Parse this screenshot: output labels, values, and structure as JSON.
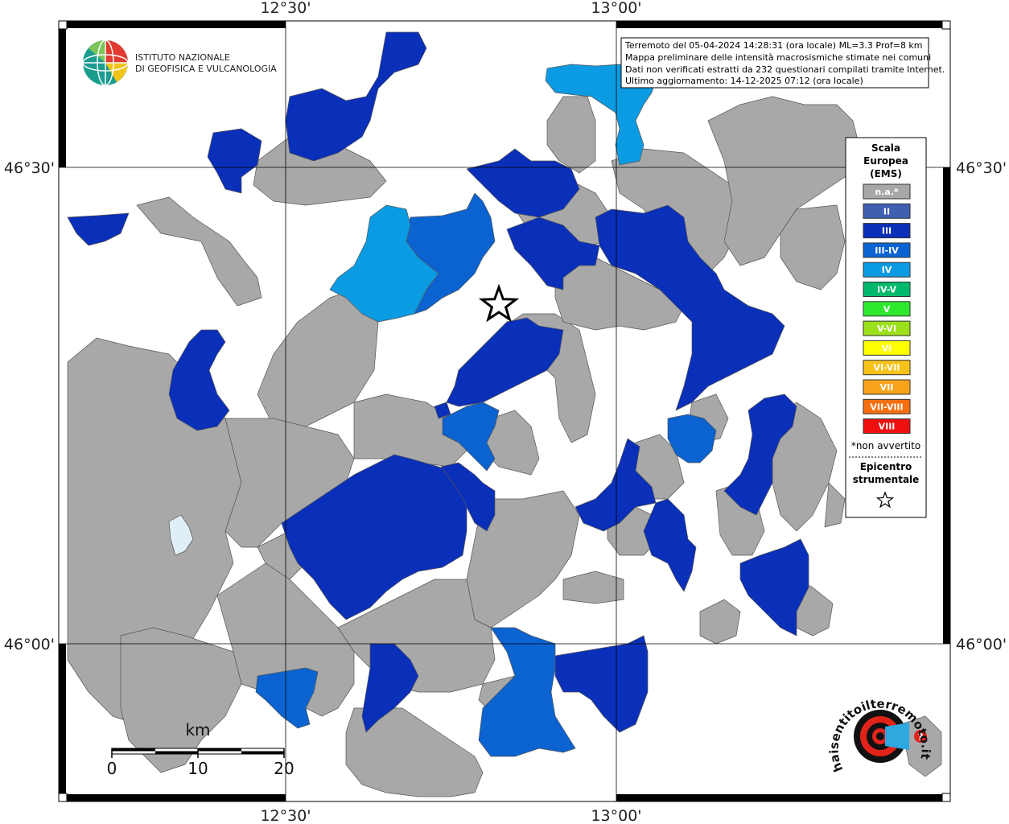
{
  "map": {
    "lon_labels": [
      "12°30'",
      "13°00'"
    ],
    "lat_labels": [
      "46°30'",
      "46°00'"
    ],
    "info_lines": [
      "Terremoto del 05-04-2024 14:28:31 (ora locale) ML=3.3 Prof=8 km",
      "Mappa preliminare delle intensità macrosismiche stimate nei comuni",
      "Dati non verificati estratti da 232 questionari compilati tramite Internet.",
      "Ultimo aggiornamento: 14-12-2025 07:12 (ora locale)"
    ],
    "colors": {
      "na": "#a8a8a8",
      "II": "#3f5fb1",
      "III": "#0a2fb8",
      "III-IV": "#0a63d0",
      "IV": "#0b9be3",
      "lake": "#e0eef7"
    }
  },
  "legend": {
    "title_lines": [
      "Scala",
      "Europea",
      "(EMS)"
    ],
    "items": [
      {
        "label": "n.a.*",
        "color": "#a8a8a8"
      },
      {
        "label": "II",
        "color": "#3f5fb1"
      },
      {
        "label": "III",
        "color": "#0a2fb8"
      },
      {
        "label": "III-IV",
        "color": "#0a63d0"
      },
      {
        "label": "IV",
        "color": "#0b9be3"
      },
      {
        "label": "IV-V",
        "color": "#00b86b"
      },
      {
        "label": "V",
        "color": "#2ee82e"
      },
      {
        "label": "V-VI",
        "color": "#9be01a"
      },
      {
        "label": "VI",
        "color": "#ffff00"
      },
      {
        "label": "VI-VII",
        "color": "#f7c219"
      },
      {
        "label": "VII",
        "color": "#f7a31b"
      },
      {
        "label": "VII-VIII",
        "color": "#f56f0f"
      },
      {
        "label": "VIII",
        "color": "#f01010"
      }
    ],
    "footnote": "*non avvertito",
    "epicenter_lines": [
      "Epicentro",
      "strumentale"
    ]
  },
  "scale_bar": {
    "unit": "km",
    "ticks": [
      "0",
      "10",
      "20"
    ]
  },
  "logos": {
    "ingv_line1": "ISTITUTO NAZIONALE",
    "ingv_line2": "DI GEOFISICA E VULCANOLOGIA",
    "hsit_text": "haisentitoilterremoto.it"
  }
}
